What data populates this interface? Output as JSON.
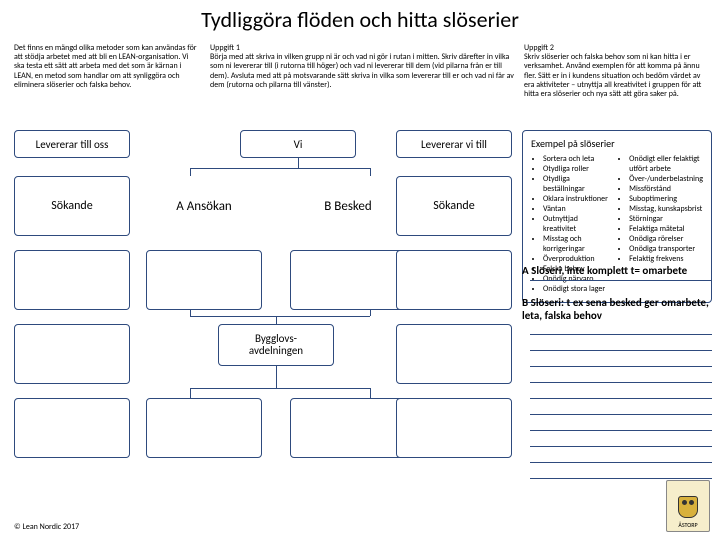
{
  "title": "Tydliggöra flöden och hitta slöserier",
  "intro": "Det finns en mängd olika metoder som kan användas för att stödja arbetet med att bli en LEAN-organisation. Vi ska testa ett sätt att arbeta med det som är kärnan i LEAN, en metod som handlar om att synliggöra och eliminera slöserier och falska behov.",
  "task1": {
    "heading": "Uppgift 1",
    "body": "Börja med att skriva in vilken grupp ni är och vad ni gör i rutan i mitten. Skriv därefter in vilka som ni levererar till (i rutorna till höger) och vad ni levererar till dem (vid pilarna från er till dem). Avsluta med att på motsvarande sätt skriva in vilka som levererar till er och vad ni får av dem (rutorna och pilarna till vänster)."
  },
  "task2": {
    "heading": "Uppgift 2",
    "body": "Skriv slöserier och falska behov som ni kan hitta i er verksamhet. Använd exemplen för att komma på ännu fler. Sätt er in i kundens situation och bedöm värdet av era aktiviteter – utnyttja all kreativitet i gruppen för att hitta era slöserier och nya sätt att göra saker på."
  },
  "headers": {
    "lev_oss": "Levererar till oss",
    "vi": "Vi",
    "lev_till": "Levererar vi till"
  },
  "boxes": {
    "sokande": "Sökande",
    "ansokan": "A Ansökan",
    "besked": "B Besked",
    "bygg": "Bygglovs-\navdelningen"
  },
  "examples": {
    "title": "Exempel på slöserier",
    "left": [
      "Sortera och leta",
      "Otydliga roller",
      "Otydliga beställningar",
      "Oklara instruktioner",
      "Väntan",
      "Outnyttjad kreativitet",
      "Misstag och korrigeringar",
      "Överproduktion",
      "Falska behov",
      "Onödig närvaro",
      "Onödigt stora lager"
    ],
    "right": [
      "Onödigt eller felaktigt utfört arbete",
      "Över-/underbelastning",
      "Missförstånd",
      "Suboptimering",
      "Misstag, kunskapsbrist",
      "Störningar",
      "Felaktiga mätetal",
      "Onödiga rörelser",
      "Onödiga transporter",
      "Felaktig frekvens"
    ]
  },
  "stmtA": "A Slöseri, inte komplett t= omarbete",
  "stmtB": "B Slöseri: t ex sena besked ger omarbete, leta, falska behov",
  "rule_tops": [
    334,
    350,
    366,
    382,
    398,
    414,
    430,
    446,
    462,
    478
  ],
  "copyright": "© Lean Nordic 2017",
  "logo_label": "ÅSTORP",
  "colors": {
    "border": "#2e4a7d"
  }
}
